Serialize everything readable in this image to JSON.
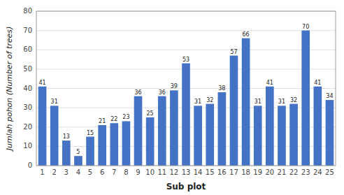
{
  "chart_data": {
    "type": "bar",
    "categories": [
      "1",
      "2",
      "3",
      "4",
      "5",
      "6",
      "7",
      "8",
      "9",
      "10",
      "11",
      "12",
      "13",
      "14",
      "15",
      "16",
      "17",
      "18",
      "19",
      "20",
      "21",
      "22",
      "23",
      "24",
      "25"
    ],
    "values": [
      41,
      31,
      13,
      5,
      15,
      21,
      22,
      23,
      36,
      25,
      36,
      39,
      53,
      31,
      32,
      38,
      57,
      66,
      31,
      41,
      31,
      32,
      70,
      41,
      34
    ],
    "color": "#4472C4",
    "xlabel": "Sub plot",
    "ylabel": "Jumlah pohon (Number of trees)",
    "ylim": [
      0,
      80
    ],
    "yticks": [
      0,
      10,
      20,
      30,
      40,
      50,
      60,
      70,
      80
    ],
    "grid": true,
    "data_labels": true
  }
}
